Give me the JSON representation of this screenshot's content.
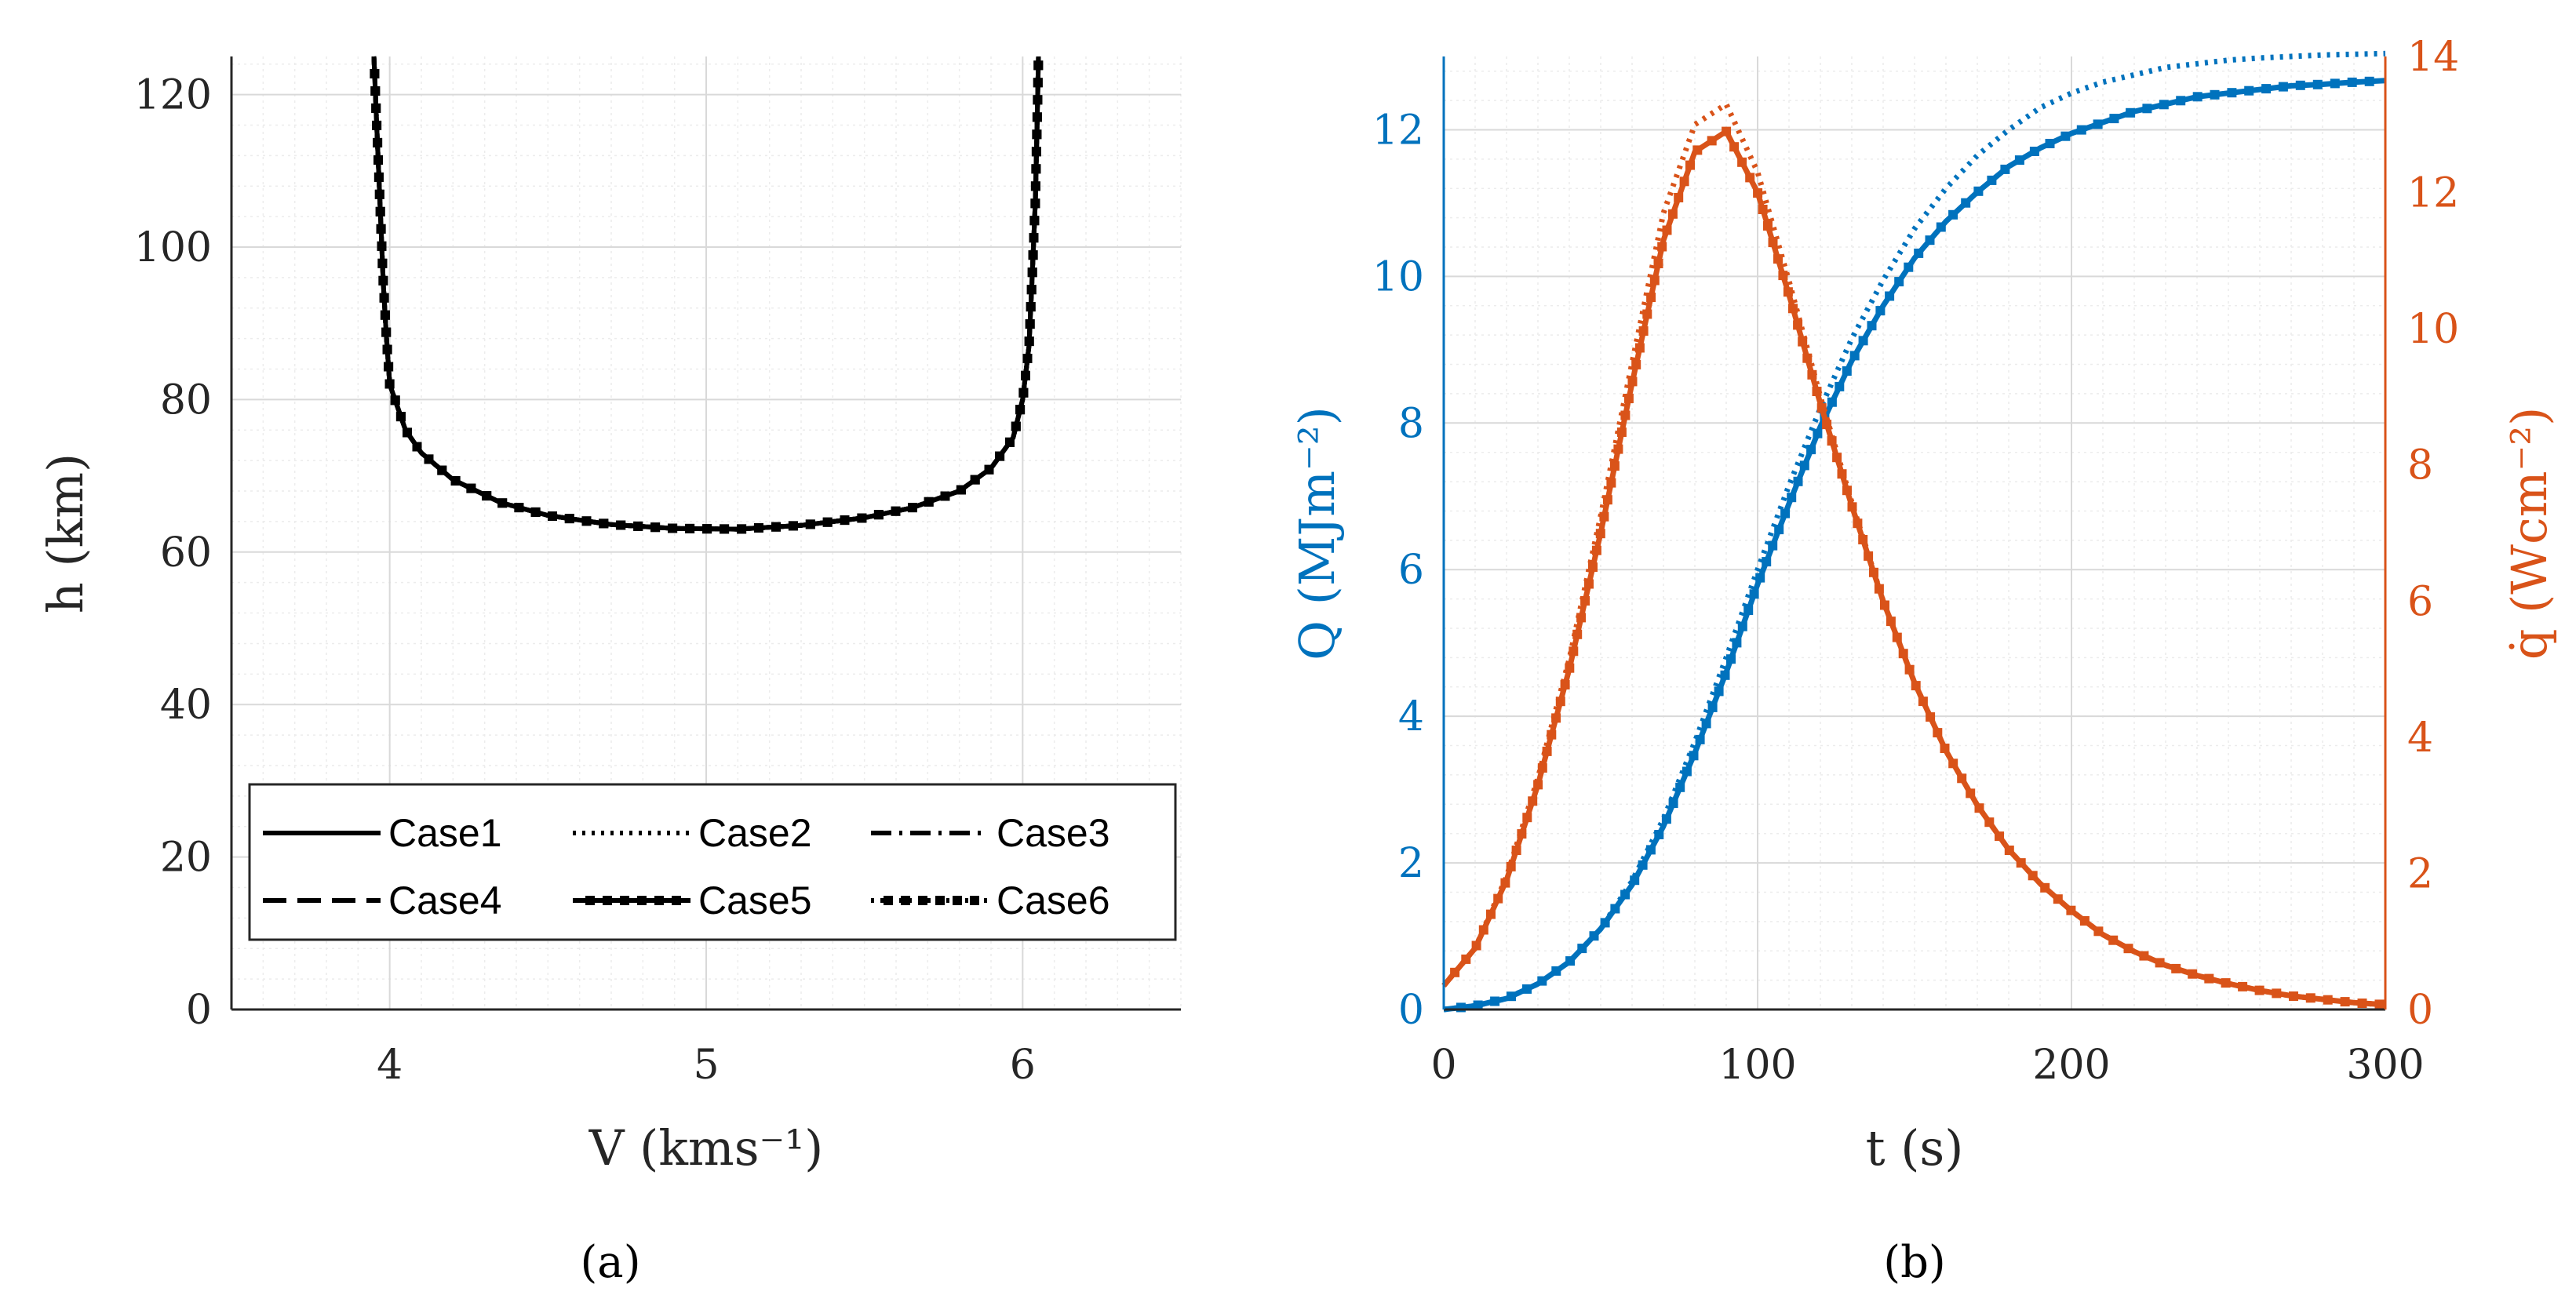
{
  "colors": {
    "blue": "#0072BD",
    "orange": "#D95319",
    "black": "#000000",
    "grid_major": "#d9d9d9",
    "grid_minor": "#ececec"
  },
  "chart_data": [
    {
      "panel_label": "(a)",
      "type": "line",
      "xlabel": "V (kms⁻¹)",
      "ylabel": "h (km)",
      "xlim": [
        3.5,
        6.5
      ],
      "ylim": [
        0,
        125
      ],
      "xticks": [
        4,
        5,
        6
      ],
      "yticks": [
        0,
        20,
        40,
        60,
        80,
        100,
        120
      ],
      "grid": true,
      "legend": {
        "placement": "bottom",
        "columns": 3
      },
      "series": [
        {
          "name": "Case1",
          "style": "solid",
          "x": [
            3.95,
            3.96,
            3.97,
            3.98,
            3.99,
            4.0,
            4.05,
            4.1,
            4.2,
            4.35,
            4.5,
            4.7,
            4.9,
            5.1,
            5.3,
            5.5,
            5.65,
            5.8,
            5.9,
            5.97,
            6.0,
            6.02,
            6.03,
            6.04,
            6.045,
            6.05
          ],
          "y": [
            125,
            115,
            105,
            95,
            88,
            82,
            76,
            73,
            69.5,
            66.5,
            64.8,
            63.6,
            63.1,
            63.0,
            63.5,
            64.5,
            65.8,
            68,
            71,
            75,
            80,
            87,
            96,
            106,
            115,
            125
          ]
        },
        {
          "name": "Case2",
          "style": "dotted",
          "x": [
            3.95,
            3.96,
            3.97,
            3.98,
            3.99,
            4.0,
            4.05,
            4.1,
            4.2,
            4.35,
            4.5,
            4.7,
            4.9,
            5.1,
            5.3,
            5.5,
            5.65,
            5.8,
            5.9,
            5.97,
            6.0,
            6.02,
            6.03,
            6.04,
            6.045,
            6.05
          ],
          "y": [
            125,
            115,
            105,
            95,
            88,
            82,
            76,
            73,
            69.5,
            66.5,
            64.8,
            63.6,
            63.1,
            63.0,
            63.5,
            64.5,
            65.8,
            68,
            71,
            75,
            80,
            87,
            96,
            106,
            115,
            125
          ]
        },
        {
          "name": "Case3",
          "style": "dashdot",
          "x": [
            3.95,
            3.96,
            3.97,
            3.98,
            3.99,
            4.0,
            4.05,
            4.1,
            4.2,
            4.35,
            4.5,
            4.7,
            4.9,
            5.1,
            5.3,
            5.5,
            5.65,
            5.8,
            5.9,
            5.97,
            6.0,
            6.02,
            6.03,
            6.04,
            6.045,
            6.05
          ],
          "y": [
            125,
            115,
            105,
            95,
            88,
            82,
            76,
            73,
            69.5,
            66.5,
            64.8,
            63.6,
            63.1,
            63.0,
            63.5,
            64.5,
            65.8,
            68,
            71,
            75,
            80,
            87,
            96,
            106,
            115,
            125
          ]
        },
        {
          "name": "Case4",
          "style": "dashed",
          "x": [
            3.95,
            3.96,
            3.97,
            3.98,
            3.99,
            4.0,
            4.05,
            4.1,
            4.2,
            4.35,
            4.5,
            4.7,
            4.9,
            5.1,
            5.3,
            5.5,
            5.65,
            5.8,
            5.9,
            5.97,
            6.0,
            6.02,
            6.03,
            6.04,
            6.045,
            6.05
          ],
          "y": [
            125,
            115,
            105,
            95,
            88,
            82,
            76,
            73,
            69.5,
            66.5,
            64.8,
            63.6,
            63.1,
            63.0,
            63.5,
            64.5,
            65.8,
            68,
            71,
            75,
            80,
            87,
            96,
            106,
            115,
            125
          ]
        },
        {
          "name": "Case5",
          "style": "solid-square",
          "x": [
            3.95,
            3.96,
            3.97,
            3.98,
            3.99,
            4.0,
            4.05,
            4.1,
            4.2,
            4.35,
            4.5,
            4.7,
            4.9,
            5.1,
            5.3,
            5.5,
            5.65,
            5.8,
            5.9,
            5.97,
            6.0,
            6.02,
            6.03,
            6.04,
            6.045,
            6.05
          ],
          "y": [
            125,
            115,
            105,
            95,
            88,
            82,
            76,
            73,
            69.5,
            66.5,
            64.8,
            63.6,
            63.1,
            63.0,
            63.5,
            64.5,
            65.8,
            68,
            71,
            75,
            80,
            87,
            96,
            106,
            115,
            125
          ]
        },
        {
          "name": "Case6",
          "style": "dotted-square",
          "x": [
            3.95,
            3.96,
            3.97,
            3.98,
            3.99,
            4.0,
            4.05,
            4.1,
            4.2,
            4.35,
            4.5,
            4.7,
            4.9,
            5.1,
            5.3,
            5.5,
            5.65,
            5.8,
            5.9,
            5.97,
            6.0,
            6.02,
            6.03,
            6.04,
            6.045,
            6.05
          ],
          "y": [
            125,
            115,
            105,
            95,
            88,
            82,
            76,
            73,
            69.5,
            66.5,
            64.8,
            63.6,
            63.1,
            63.0,
            63.5,
            64.5,
            65.8,
            68,
            71,
            75,
            80,
            87,
            96,
            106,
            115,
            125
          ]
        }
      ]
    },
    {
      "panel_label": "(b)",
      "type": "line",
      "xlabel": "t (s)",
      "ylabel_left": "Q (MJm⁻²)",
      "ylabel_right": "q̇ (Wcm⁻²)",
      "xlim": [
        0,
        300
      ],
      "ylim_left": [
        0,
        13
      ],
      "ylim_right": [
        0,
        14
      ],
      "xticks": [
        0,
        100,
        200,
        300
      ],
      "yticks_left": [
        0,
        2,
        4,
        6,
        8,
        10,
        12
      ],
      "yticks_right": [
        0,
        2,
        4,
        6,
        8,
        10,
        12,
        14
      ],
      "grid": true,
      "series": [
        {
          "axis": "left",
          "color": "blue",
          "style": "solid-square",
          "x": [
            0,
            10,
            20,
            30,
            40,
            50,
            60,
            70,
            80,
            90,
            100,
            110,
            120,
            130,
            140,
            150,
            160,
            170,
            180,
            190,
            200,
            210,
            220,
            230,
            240,
            250,
            260,
            270,
            280,
            290,
            300
          ],
          "y": [
            0,
            0.05,
            0.15,
            0.35,
            0.65,
            1.1,
            1.7,
            2.5,
            3.5,
            4.6,
            5.8,
            6.9,
            7.95,
            8.85,
            9.6,
            10.25,
            10.75,
            11.15,
            11.5,
            11.75,
            11.95,
            12.1,
            12.25,
            12.35,
            12.45,
            12.5,
            12.55,
            12.6,
            12.62,
            12.65,
            12.67
          ]
        },
        {
          "axis": "left",
          "color": "blue",
          "style": "dotted",
          "x": [
            0,
            10,
            20,
            30,
            40,
            50,
            60,
            70,
            80,
            90,
            100,
            110,
            120,
            130,
            140,
            150,
            160,
            170,
            180,
            190,
            200,
            210,
            220,
            230,
            240,
            250,
            260,
            270,
            280,
            290,
            300
          ],
          "y": [
            0,
            0.05,
            0.15,
            0.35,
            0.65,
            1.1,
            1.75,
            2.6,
            3.65,
            4.8,
            6.0,
            7.15,
            8.2,
            9.15,
            9.95,
            10.65,
            11.2,
            11.65,
            12.0,
            12.3,
            12.5,
            12.65,
            12.75,
            12.85,
            12.9,
            12.95,
            12.98,
            13.0,
            13.02,
            13.03,
            13.04
          ]
        },
        {
          "axis": "right",
          "color": "orange",
          "style": "solid-square",
          "x": [
            0,
            10,
            20,
            30,
            40,
            50,
            60,
            70,
            80,
            90,
            100,
            110,
            120,
            130,
            140,
            150,
            160,
            170,
            180,
            190,
            200,
            210,
            220,
            230,
            240,
            250,
            260,
            270,
            280,
            290,
            300
          ],
          "y": [
            0.35,
            0.9,
            1.9,
            3.3,
            5.0,
            7.0,
            9.2,
            11.3,
            12.6,
            12.9,
            12.0,
            10.5,
            8.9,
            7.4,
            6.0,
            4.8,
            3.8,
            3.0,
            2.35,
            1.85,
            1.45,
            1.1,
            0.85,
            0.65,
            0.5,
            0.38,
            0.28,
            0.2,
            0.15,
            0.1,
            0.07
          ]
        },
        {
          "axis": "right",
          "color": "orange",
          "style": "dotted",
          "x": [
            0,
            10,
            20,
            30,
            40,
            50,
            60,
            70,
            80,
            90,
            100,
            110,
            120,
            130,
            140,
            150,
            160,
            170,
            180,
            190,
            200,
            210,
            220,
            230,
            240,
            250,
            260,
            270,
            280,
            290,
            300
          ],
          "y": [
            0.35,
            0.9,
            1.95,
            3.4,
            5.15,
            7.25,
            9.5,
            11.7,
            13.0,
            13.3,
            12.3,
            10.7,
            9.0,
            7.45,
            6.0,
            4.8,
            3.8,
            3.0,
            2.35,
            1.85,
            1.45,
            1.1,
            0.85,
            0.65,
            0.5,
            0.38,
            0.28,
            0.2,
            0.15,
            0.1,
            0.07
          ]
        }
      ]
    }
  ]
}
